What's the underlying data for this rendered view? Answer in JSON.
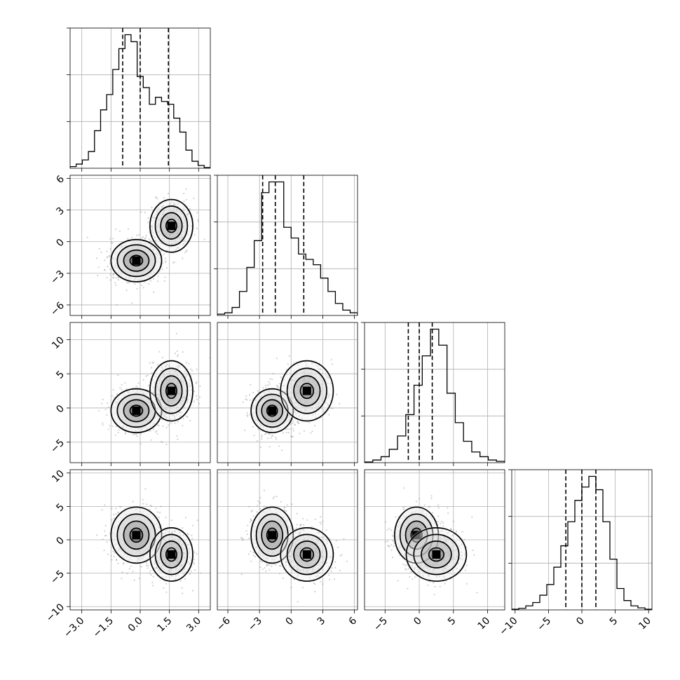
{
  "chart_data": {
    "type": "corner",
    "title": "",
    "parameters": [
      {
        "range": [
          -3.6,
          3.6
        ],
        "ticks": [
          -3.0,
          -1.5,
          0.0,
          1.5,
          3.0
        ],
        "tick_labels": [
          "−3.0",
          "−1.5",
          "0.0",
          "1.5",
          "3.0"
        ],
        "quantiles": [
          -0.9,
          0.0,
          1.45
        ],
        "histogram": [
          0.012,
          0.03,
          0.06,
          0.12,
          0.27,
          0.42,
          0.53,
          0.71,
          0.86,
          0.96,
          0.91,
          0.66,
          0.58,
          0.46,
          0.51,
          0.48,
          0.46,
          0.36,
          0.26,
          0.13,
          0.05,
          0.02,
          0.005
        ]
      },
      {
        "range": [
          -7,
          6.3
        ],
        "ticks": [
          -6,
          -3,
          0,
          3,
          6
        ],
        "tick_labels": [
          "−6",
          "−3",
          "0",
          "3",
          "6"
        ],
        "quantiles": [
          -2.7,
          -1.5,
          1.2
        ],
        "histogram": [
          0.01,
          0.02,
          0.06,
          0.18,
          0.36,
          0.56,
          0.92,
          1.0,
          1.0,
          0.66,
          0.58,
          0.46,
          0.42,
          0.38,
          0.28,
          0.18,
          0.09,
          0.04,
          0.02
        ]
      },
      {
        "range": [
          -8,
          12.5
        ],
        "ticks": [
          -5,
          0,
          5,
          10
        ],
        "tick_labels": [
          "−5",
          "0",
          "5",
          "10"
        ],
        "quantiles": [
          -1.6,
          0.0,
          1.9
        ],
        "histogram": [
          0.005,
          0.02,
          0.045,
          0.1,
          0.2,
          0.36,
          0.58,
          0.8,
          1.0,
          0.88,
          0.52,
          0.3,
          0.16,
          0.08,
          0.045,
          0.02,
          0.01
        ]
      },
      {
        "range": [
          -10.5,
          10.5
        ],
        "ticks": [
          -10,
          -5,
          0,
          5,
          10
        ],
        "tick_labels": [
          "−10",
          "−5",
          "0",
          "5",
          "10"
        ],
        "quantiles": [
          -2.4,
          0.0,
          2.1
        ],
        "histogram": [
          0.005,
          0.012,
          0.03,
          0.055,
          0.11,
          0.19,
          0.32,
          0.48,
          0.66,
          0.82,
          0.92,
          1.0,
          0.9,
          0.66,
          0.38,
          0.16,
          0.07,
          0.03,
          0.015,
          0.005
        ]
      }
    ],
    "modes": [
      {
        "mean": [
          -0.2,
          -1.8,
          -0.4,
          0.7
        ],
        "sd": [
          0.65,
          1.0,
          1.6,
          2.1
        ],
        "weight": 0.62
      },
      {
        "mean": [
          1.6,
          1.5,
          2.5,
          -2.2
        ],
        "sd": [
          0.55,
          1.25,
          2.2,
          2.0
        ],
        "weight": 0.38
      }
    ],
    "contour_levels": [
      0.5,
      1.0,
      1.5,
      2.0
    ],
    "scatter_points_per_panel": 1000
  }
}
